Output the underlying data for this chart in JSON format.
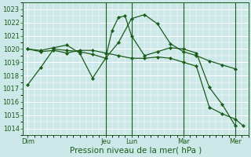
{
  "xlabel": "Pression niveau de la mer( hPa )",
  "bg_color": "#cde8e8",
  "grid_color": "#ffffff",
  "line_color": "#1a5c1a",
  "ylim": [
    1013.5,
    1023.5
  ],
  "yticks": [
    1014,
    1015,
    1016,
    1017,
    1018,
    1019,
    1020,
    1021,
    1022,
    1023
  ],
  "day_labels": [
    "Dim",
    "",
    "",
    "Jeu",
    "Lun",
    "",
    "Mar",
    "",
    "Mer"
  ],
  "day_x": [
    0,
    1,
    2,
    3,
    4,
    5,
    6,
    7,
    8
  ],
  "vline_x": [
    3,
    4,
    6,
    8
  ],
  "lines": [
    {
      "x": [
        0,
        0.5,
        1,
        1.5,
        2,
        2.5,
        3,
        3.5,
        4,
        4.5,
        5,
        5.5,
        6,
        6.5,
        7,
        7.5,
        8
      ],
      "y": [
        1017.3,
        1018.6,
        1020.0,
        1019.9,
        1019.8,
        1019.6,
        1019.3,
        1020.5,
        1022.3,
        1022.6,
        1021.9,
        1020.4,
        1019.8,
        1019.5,
        1019.1,
        1018.8,
        1018.5
      ]
    },
    {
      "x": [
        0,
        0.5,
        1,
        1.5,
        2,
        2.5,
        3,
        3.25,
        3.5,
        3.75,
        4,
        4.5,
        5,
        5.5,
        6,
        6.5,
        7,
        7.5,
        8
      ],
      "y": [
        1020.0,
        1019.9,
        1020.1,
        1020.3,
        1019.7,
        1017.8,
        1019.3,
        1021.4,
        1022.4,
        1022.5,
        1021.0,
        1019.5,
        1019.8,
        1020.1,
        1020.0,
        1019.7,
        1017.1,
        1015.8,
        1014.2
      ]
    },
    {
      "x": [
        0,
        0.5,
        1,
        1.5,
        2,
        2.5,
        3,
        3.5,
        4,
        4.5,
        5,
        5.5,
        6,
        6.5,
        7,
        7.5,
        8,
        8.3
      ],
      "y": [
        1020.0,
        1019.8,
        1019.9,
        1019.7,
        1019.9,
        1019.9,
        1019.7,
        1019.5,
        1019.3,
        1019.3,
        1019.4,
        1019.3,
        1019.0,
        1018.7,
        1015.6,
        1015.1,
        1014.7,
        1014.2
      ]
    }
  ],
  "marker": "D",
  "markersize": 2.2,
  "linewidth": 0.9,
  "tick_fontsize": 6,
  "xlabel_fontsize": 7.5
}
